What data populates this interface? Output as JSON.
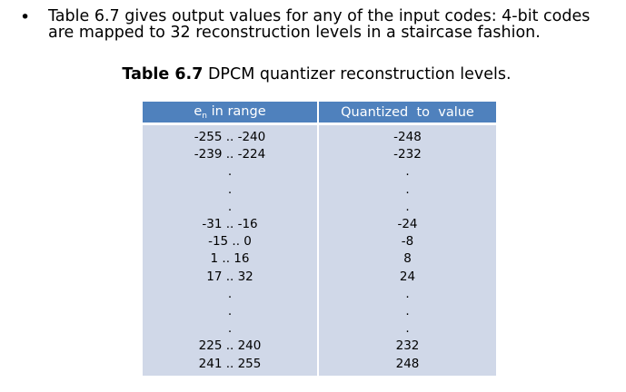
{
  "bullet": {
    "mark": "•",
    "line1": "Table 6.7 gives output values for any of the input codes: 4-bit codes",
    "line2": "are mapped to 32 reconstruction levels in a staircase fashion."
  },
  "caption": {
    "label": "Table 6.7",
    "text": " DPCM quantizer reconstruction levels."
  },
  "table": {
    "header": {
      "col1_main": "e",
      "col1_sub": "n",
      "col1_rest": " in range",
      "col2": "Quantized  to  value"
    },
    "rows": [
      {
        "range": "-255 .. -240",
        "value": "-248"
      },
      {
        "range": "-239 .. -224",
        "value": "-232"
      },
      {
        "range": ".",
        "value": "."
      },
      {
        "range": ".",
        "value": "."
      },
      {
        "range": ".",
        "value": "."
      },
      {
        "range": "-31 .. -16",
        "value": "-24"
      },
      {
        "range": "-15 .. 0",
        "value": "-8"
      },
      {
        "range": "1 .. 16",
        "value": "8"
      },
      {
        "range": "17 .. 32",
        "value": "24"
      },
      {
        "range": ".",
        "value": "."
      },
      {
        "range": ".",
        "value": "."
      },
      {
        "range": ".",
        "value": "."
      },
      {
        "range": "225 .. 240",
        "value": "232"
      },
      {
        "range": "241 .. 255",
        "value": "248"
      }
    ]
  }
}
